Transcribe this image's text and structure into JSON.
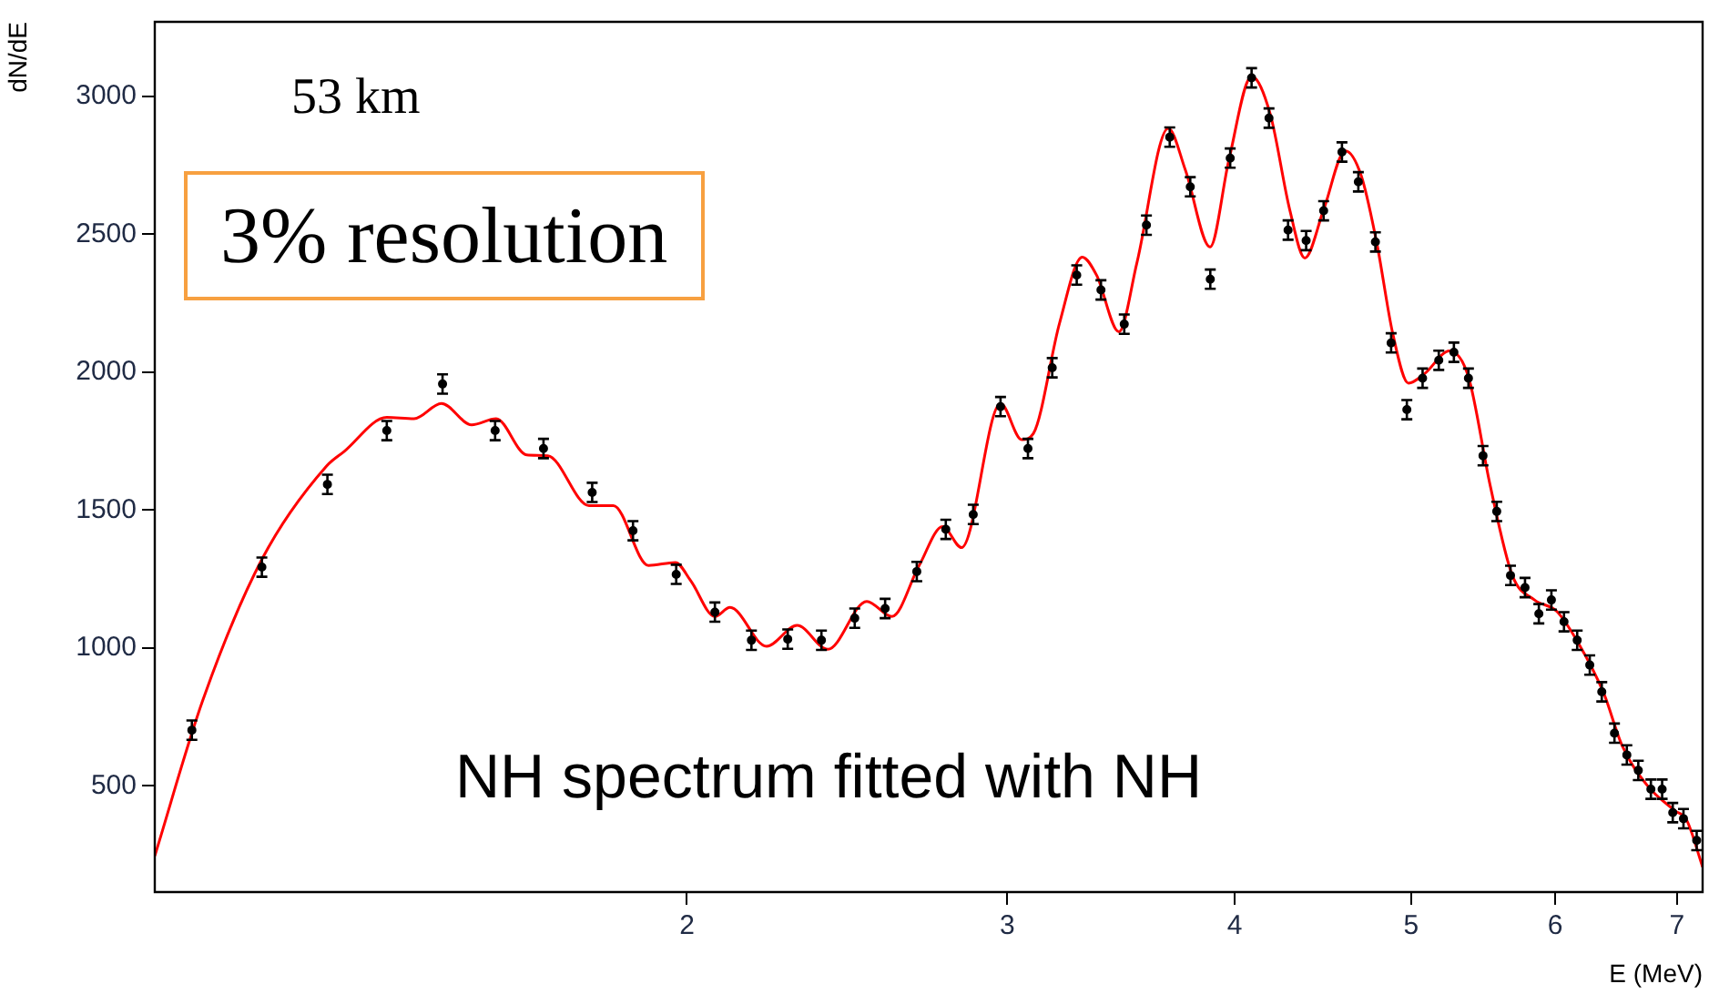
{
  "chart_data": {
    "type": "scatter",
    "log": "x",
    "xlabel": "E (MeV)",
    "ylabel": "dN/dE",
    "xlim": [
      1.02,
      7.23
    ],
    "xticks": [
      2,
      3,
      4,
      5,
      6,
      7
    ],
    "ylim": [
      115,
      3270
    ],
    "yticks": [
      500,
      1000,
      1500,
      2000,
      2500,
      3000
    ],
    "annotations": [
      "53 km",
      "3% resolution",
      "NH spectrum fitted with NH"
    ],
    "series": [
      {
        "type": "scatter",
        "color": "#000000",
        "marker": "circle",
        "x": [
          1.069,
          1.168,
          1.269,
          1.368,
          1.468,
          1.569,
          1.668,
          1.774,
          1.868,
          1.973,
          2.072,
          2.17,
          2.272,
          2.371,
          2.473,
          2.57,
          2.675,
          2.775,
          2.873,
          2.974,
          3.079,
          3.175,
          3.275,
          3.377,
          3.478,
          3.577,
          3.684,
          3.781,
          3.878,
          3.977,
          4.086,
          4.177,
          4.279,
          4.378,
          4.476,
          4.581,
          4.677,
          4.779,
          4.875,
          4.973,
          5.073,
          5.178,
          5.278,
          5.376,
          5.476,
          5.572,
          5.67,
          5.775,
          5.877,
          5.971,
          6.067,
          6.169,
          6.268,
          6.364,
          6.467,
          6.569,
          6.665,
          6.772,
          6.869,
          6.962,
          7.057,
          7.176
        ],
        "values": [
          702,
          1293,
          1593,
          1788,
          1957,
          1788,
          1723,
          1564,
          1425,
          1267,
          1130,
          1028,
          1032,
          1028,
          1108,
          1143,
          1277,
          1430,
          1484,
          1875,
          1723,
          2016,
          2352,
          2298,
          2174,
          2533,
          2852,
          2672,
          2337,
          2776,
          3067,
          2921,
          2515,
          2477,
          2585,
          2798,
          2690,
          2472,
          2106,
          1864,
          1978,
          2043,
          2072,
          1978,
          1697,
          1495,
          1263,
          1219,
          1124,
          1174,
          1095,
          1028,
          938,
          841,
          691,
          612,
          556,
          488,
          488,
          403,
          381,
          302
        ],
        "errors": [
          35,
          35,
          35,
          35,
          35,
          35,
          35,
          35,
          35,
          35,
          35,
          35,
          35,
          35,
          35,
          35,
          35,
          35,
          35,
          35,
          35,
          35,
          35,
          35,
          35,
          35,
          35,
          35,
          35,
          35,
          35,
          35,
          35,
          35,
          35,
          35,
          35,
          35,
          35,
          35,
          35,
          35,
          35,
          35,
          35,
          35,
          35,
          35,
          35,
          35,
          35,
          35,
          35,
          35,
          35,
          35,
          35,
          35,
          35,
          35,
          35,
          35
        ]
      },
      {
        "type": "line",
        "color": "#ff0000",
        "marker": "none",
        "x": [
          1.02,
          1.084,
          1.168,
          1.267,
          1.296,
          1.368,
          1.416,
          1.466,
          1.523,
          1.571,
          1.633,
          1.677,
          1.767,
          1.822,
          1.905,
          1.971,
          2.009,
          2.072,
          2.112,
          2.212,
          2.299,
          2.39,
          2.511,
          2.592,
          2.683,
          2.764,
          2.831,
          2.974,
          3.055,
          3.1,
          3.205,
          3.298,
          3.358,
          3.455,
          3.534,
          3.677,
          3.758,
          3.877,
          3.97,
          4.086,
          4.183,
          4.288,
          4.371,
          4.476,
          4.601,
          4.694,
          4.788,
          4.885,
          4.983,
          5.085,
          5.249,
          5.376,
          5.526,
          5.683,
          5.845,
          6.011,
          6.179,
          6.379,
          6.53,
          6.744,
          6.981,
          7.085,
          7.23
        ],
        "values": [
          246,
          811,
          1321,
          1658,
          1712,
          1836,
          1831,
          1886,
          1809,
          1831,
          1700,
          1697,
          1516,
          1516,
          1299,
          1310,
          1245,
          1114,
          1147,
          1006,
          1082,
          995,
          1169,
          1114,
          1299,
          1440,
          1364,
          1886,
          1755,
          1777,
          2179,
          2417,
          2352,
          2146,
          2396,
          2884,
          2732,
          2454,
          2768,
          3072,
          2937,
          2589,
          2414,
          2589,
          2802,
          2712,
          2466,
          2140,
          1960,
          1994,
          2077,
          1983,
          1589,
          1263,
          1174,
          1133,
          1017,
          837,
          646,
          500,
          410,
          376,
          206
        ]
      }
    ]
  }
}
